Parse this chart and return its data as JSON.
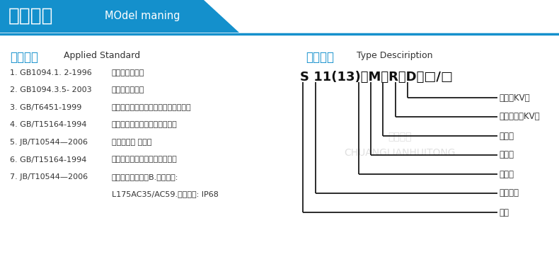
{
  "bg_color": "#ffffff",
  "header_bg": "#1490cc",
  "header_title_cn": "型号含义",
  "header_title_en": "MOdel maning",
  "left_section_title_cn": "产品标准",
  "left_section_title_en": "Applied Standard",
  "right_section_title_cn": "型号说明",
  "right_section_title_en": "Type Desciription",
  "left_items": [
    [
      "1. GB1094.1. 2-1996",
      "《电力变压器》"
    ],
    [
      "2. GB1094.3.5- 2003",
      "《电力变压器》"
    ],
    [
      "3. GB/T6451-1999    ",
      "《三相油浸式变压器技术参数和要求》"
    ],
    [
      "4. GB/T15164-1994",
      "《油浸式电力变压器负载导则》"
    ],
    [
      "5. JB/T10544—2006",
      "《地下式变 压器》"
    ],
    [
      "6. GB/T15164-1994",
      "《油浸式电力变压器负载导则》"
    ],
    [
      "7. JB/T10544—2006",
      "《地下式变压器》B.绝缘水平:"
    ],
    [
      "",
      "L175AC35/AC59.防护等级: IP68"
    ]
  ],
  "model_string_parts": [
    "S",
    " 11(13)",
    "－M－R－D－",
    "□/□"
  ],
  "model_display": "S 11(13)－M－R－D－□/□",
  "right_labels": [
    "电压（KV）",
    "额定容量（KV）",
    "地埋式",
    "熔断型",
    "全密封",
    "设计序号",
    "三相"
  ],
  "line_color": "#1a1a1a",
  "blue_color": "#1490cc",
  "text_color": "#333333",
  "watermark_cn": "创联汇通",
  "watermark_en": "CHUANGLIANHUITONG"
}
